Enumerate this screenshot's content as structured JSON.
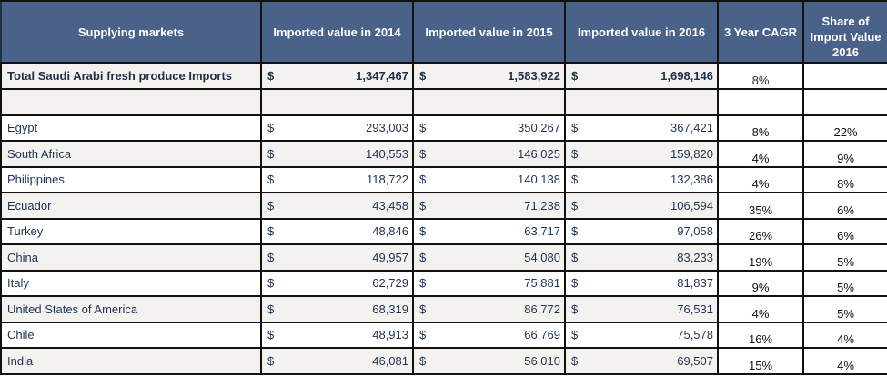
{
  "table": {
    "headers": [
      "Supplying markets",
      "Imported value in 2014",
      "Imported value in 2015",
      "Imported value in 2016",
      "3 Year CAGR",
      "Share of Import Value 2016"
    ],
    "currency_symbol": "$",
    "total": {
      "market": "Total Saudi Arabi fresh produce Imports",
      "v2014": "1,347,467",
      "v2015": "1,583,922",
      "v2016": "1,698,146",
      "cagr": "8%",
      "share": ""
    },
    "rows": [
      {
        "market": "Egypt",
        "v2014": "293,003",
        "v2015": "350,267",
        "v2016": "367,421",
        "cagr": "8%",
        "share": "22%"
      },
      {
        "market": "South Africa",
        "v2014": "140,553",
        "v2015": "146,025",
        "v2016": "159,820",
        "cagr": "4%",
        "share": "9%"
      },
      {
        "market": "Philippines",
        "v2014": "118,722",
        "v2015": "140,138",
        "v2016": "132,386",
        "cagr": "4%",
        "share": "8%"
      },
      {
        "market": "Ecuador",
        "v2014": "43,458",
        "v2015": "71,238",
        "v2016": "106,594",
        "cagr": "35%",
        "share": "6%"
      },
      {
        "market": "Turkey",
        "v2014": "48,846",
        "v2015": "63,717",
        "v2016": "97,058",
        "cagr": "26%",
        "share": "6%"
      },
      {
        "market": "China",
        "v2014": "49,957",
        "v2015": "54,080",
        "v2016": "83,233",
        "cagr": "19%",
        "share": "5%"
      },
      {
        "market": "Italy",
        "v2014": "62,729",
        "v2015": "75,881",
        "v2016": "81,837",
        "cagr": "9%",
        "share": "5%"
      },
      {
        "market": "United States of America",
        "v2014": "68,319",
        "v2015": "86,772",
        "v2016": "76,531",
        "cagr": "4%",
        "share": "5%"
      },
      {
        "market": "Chile",
        "v2014": "48,913",
        "v2015": "66,769",
        "v2016": "75,578",
        "cagr": "16%",
        "share": "4%"
      },
      {
        "market": "India",
        "v2014": "46,081",
        "v2015": "56,010",
        "v2016": "69,507",
        "cagr": "15%",
        "share": "4%"
      }
    ]
  },
  "colors": {
    "header_bg": "#4a6189",
    "header_text": "#ffffff",
    "shaded_row_bg": "#f3f2ef",
    "body_text": "#1f3354"
  }
}
